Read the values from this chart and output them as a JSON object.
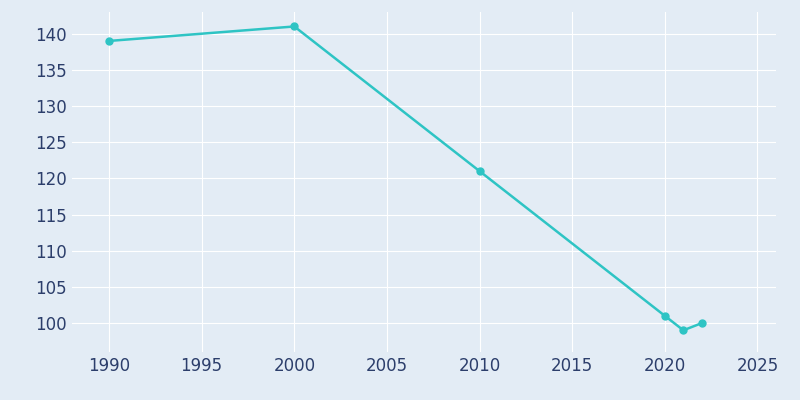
{
  "years": [
    1990,
    2000,
    2010,
    2020,
    2021,
    2022
  ],
  "population": [
    139,
    141,
    121,
    101,
    99,
    100
  ],
  "line_color": "#2EC4C4",
  "marker_color": "#2EC4C4",
  "background_color": "#E3ECF5",
  "grid_color": "#FFFFFF",
  "tick_label_color": "#2C3E6B",
  "xlim": [
    1988,
    2026
  ],
  "ylim": [
    96,
    143
  ],
  "xticks": [
    1990,
    1995,
    2000,
    2005,
    2010,
    2015,
    2020,
    2025
  ],
  "yticks": [
    100,
    105,
    110,
    115,
    120,
    125,
    130,
    135,
    140
  ],
  "line_width": 1.8,
  "marker_size": 5,
  "tick_fontsize": 12
}
